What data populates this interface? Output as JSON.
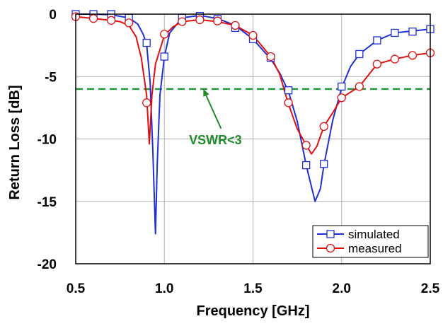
{
  "chart_data": {
    "type": "line",
    "xlabel": "Frequency [GHz]",
    "ylabel": "Return Loss [dB]",
    "xlim": [
      0.5,
      2.5
    ],
    "ylim": [
      -20,
      0
    ],
    "x_ticks": [
      "0.5",
      "1.0",
      "1.5",
      "2.0",
      "2.5"
    ],
    "x_tick_values": [
      0.5,
      1.0,
      1.5,
      2.0,
      2.5
    ],
    "y_ticks": [
      "0",
      "-5",
      "-10",
      "-15",
      "-20"
    ],
    "y_tick_values": [
      0,
      -5,
      -10,
      -15,
      -20
    ],
    "grid": true,
    "legend_position": "bottom-right",
    "series": [
      {
        "name": "simulated",
        "color": "#1f2fd6",
        "marker": "square",
        "curve": [
          [
            0.5,
            0
          ],
          [
            0.6,
            0
          ],
          [
            0.7,
            -0.05
          ],
          [
            0.8,
            -0.3
          ],
          [
            0.85,
            -0.8
          ],
          [
            0.88,
            -1.6
          ],
          [
            0.9,
            -2.4
          ],
          [
            0.92,
            -5.5
          ],
          [
            0.935,
            -11.0
          ],
          [
            0.95,
            -17.6
          ],
          [
            0.96,
            -12.0
          ],
          [
            0.975,
            -6.5
          ],
          [
            1.0,
            -3.4
          ],
          [
            1.03,
            -1.5
          ],
          [
            1.1,
            -0.3
          ],
          [
            1.2,
            -0.1
          ],
          [
            1.3,
            -0.35
          ],
          [
            1.4,
            -0.9
          ],
          [
            1.5,
            -2.0
          ],
          [
            1.6,
            -3.6
          ],
          [
            1.65,
            -4.7
          ],
          [
            1.7,
            -6.2
          ],
          [
            1.75,
            -8.6
          ],
          [
            1.8,
            -12.1
          ],
          [
            1.85,
            -15.0
          ],
          [
            1.88,
            -14.0
          ],
          [
            1.9,
            -12.1
          ],
          [
            1.95,
            -8.5
          ],
          [
            2.0,
            -5.9
          ],
          [
            2.05,
            -4.2
          ],
          [
            2.1,
            -3.2
          ],
          [
            2.2,
            -2.1
          ],
          [
            2.3,
            -1.5
          ],
          [
            2.4,
            -1.35
          ],
          [
            2.5,
            -1.2
          ]
        ],
        "markers": [
          [
            0.5,
            0
          ],
          [
            0.6,
            0
          ],
          [
            0.7,
            0
          ],
          [
            0.8,
            -0.3
          ],
          [
            0.9,
            -2.3
          ],
          [
            1.0,
            -3.4
          ],
          [
            1.1,
            -0.3
          ],
          [
            1.2,
            -0.15
          ],
          [
            1.3,
            -0.4
          ],
          [
            1.4,
            -1.1
          ],
          [
            1.5,
            -2.0
          ],
          [
            1.6,
            -3.5
          ],
          [
            1.7,
            -6.1
          ],
          [
            1.8,
            -12.1
          ],
          [
            1.9,
            -12.0
          ],
          [
            2.0,
            -5.8
          ],
          [
            2.1,
            -3.2
          ],
          [
            2.2,
            -2.1
          ],
          [
            2.3,
            -1.5
          ],
          [
            2.4,
            -1.4
          ],
          [
            2.5,
            -1.2
          ]
        ]
      },
      {
        "name": "measured",
        "color": "#e01010",
        "marker": "circle",
        "curve": [
          [
            0.5,
            -0.2
          ],
          [
            0.6,
            -0.35
          ],
          [
            0.7,
            -0.5
          ],
          [
            0.75,
            -0.6
          ],
          [
            0.8,
            -0.9
          ],
          [
            0.84,
            -1.8
          ],
          [
            0.87,
            -3.5
          ],
          [
            0.9,
            -6.5
          ],
          [
            0.915,
            -10.4
          ],
          [
            0.93,
            -6.5
          ],
          [
            0.95,
            -4.0
          ],
          [
            1.0,
            -1.7
          ],
          [
            1.05,
            -1.0
          ],
          [
            1.1,
            -0.6
          ],
          [
            1.2,
            -0.45
          ],
          [
            1.3,
            -0.6
          ],
          [
            1.4,
            -0.9
          ],
          [
            1.5,
            -1.7
          ],
          [
            1.6,
            -3.4
          ],
          [
            1.65,
            -4.8
          ],
          [
            1.7,
            -7.2
          ],
          [
            1.75,
            -9.2
          ],
          [
            1.8,
            -10.5
          ],
          [
            1.83,
            -11.2
          ],
          [
            1.86,
            -10.6
          ],
          [
            1.9,
            -9.0
          ],
          [
            1.95,
            -7.9
          ],
          [
            2.0,
            -6.7
          ],
          [
            2.1,
            -5.8
          ],
          [
            2.2,
            -4.0
          ],
          [
            2.3,
            -3.6
          ],
          [
            2.4,
            -3.3
          ],
          [
            2.5,
            -3.1
          ]
        ],
        "markers": [
          [
            0.5,
            -0.2
          ],
          [
            0.6,
            -0.35
          ],
          [
            0.7,
            -0.5
          ],
          [
            0.8,
            -0.7
          ],
          [
            0.9,
            -7.1
          ],
          [
            1.0,
            -1.6
          ],
          [
            1.1,
            -0.6
          ],
          [
            1.2,
            -0.45
          ],
          [
            1.3,
            -0.55
          ],
          [
            1.4,
            -0.9
          ],
          [
            1.5,
            -1.7
          ],
          [
            1.6,
            -3.4
          ],
          [
            1.7,
            -7.1
          ],
          [
            1.8,
            -10.5
          ],
          [
            1.9,
            -9.0
          ],
          [
            2.0,
            -6.7
          ],
          [
            2.1,
            -5.8
          ],
          [
            2.2,
            -4.0
          ],
          [
            2.3,
            -3.6
          ],
          [
            2.4,
            -3.3
          ],
          [
            2.5,
            -3.1
          ]
        ]
      }
    ],
    "reference_line": {
      "y": -6,
      "color": "#1f9a3a",
      "style": "dashed"
    },
    "annotation": {
      "text": "VSWR<3",
      "color": "#1f8a2a",
      "arrow_to": [
        1.22,
        -6
      ]
    }
  }
}
